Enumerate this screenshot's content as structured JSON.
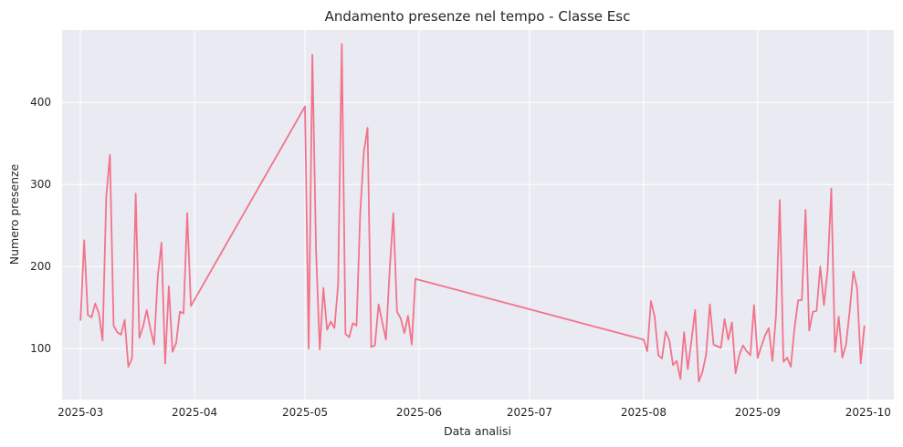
{
  "chart_data": {
    "type": "line",
    "title": "Andamento presenze nel tempo - Classe Esc",
    "xlabel": "Data analisi",
    "ylabel": "Numero presenze",
    "x_ticks": [
      "2025-03",
      "2025-04",
      "2025-05",
      "2025-06",
      "2025-07",
      "2025-08",
      "2025-09",
      "2025-10"
    ],
    "y_ticks": [
      100,
      200,
      300,
      400
    ],
    "xlim": [
      "2025-02-24",
      "2025-10-08"
    ],
    "ylim": [
      38,
      488
    ],
    "grid": true,
    "color": "#f2748a",
    "background": "#eaeaf2",
    "series": [
      {
        "x": [
          "2025-03-01",
          "2025-03-02",
          "2025-03-03",
          "2025-03-04",
          "2025-03-05",
          "2025-03-06",
          "2025-03-07",
          "2025-03-08",
          "2025-03-09",
          "2025-03-10",
          "2025-03-11",
          "2025-03-12",
          "2025-03-13",
          "2025-03-14",
          "2025-03-15",
          "2025-03-16",
          "2025-03-17",
          "2025-03-18",
          "2025-03-19",
          "2025-03-20",
          "2025-03-21",
          "2025-03-22",
          "2025-03-23",
          "2025-03-24",
          "2025-03-25",
          "2025-03-26",
          "2025-03-27",
          "2025-03-28",
          "2025-03-29",
          "2025-03-30",
          "2025-03-31",
          "2025-05-01",
          "2025-05-02",
          "2025-05-03",
          "2025-05-04",
          "2025-05-05",
          "2025-05-06",
          "2025-05-07",
          "2025-05-08",
          "2025-05-09",
          "2025-05-10",
          "2025-05-11",
          "2025-05-12",
          "2025-05-13",
          "2025-05-14",
          "2025-05-15",
          "2025-05-16",
          "2025-05-17",
          "2025-05-18",
          "2025-05-19",
          "2025-05-20",
          "2025-05-21",
          "2025-05-22",
          "2025-05-23",
          "2025-05-24",
          "2025-05-25",
          "2025-05-26",
          "2025-05-27",
          "2025-05-28",
          "2025-05-29",
          "2025-05-30",
          "2025-05-31",
          "2025-08-01",
          "2025-08-02",
          "2025-08-03",
          "2025-08-04",
          "2025-08-05",
          "2025-08-06",
          "2025-08-07",
          "2025-08-08",
          "2025-08-09",
          "2025-08-10",
          "2025-08-11",
          "2025-08-12",
          "2025-08-13",
          "2025-08-14",
          "2025-08-15",
          "2025-08-16",
          "2025-08-17",
          "2025-08-18",
          "2025-08-19",
          "2025-08-20",
          "2025-08-21",
          "2025-08-22",
          "2025-08-23",
          "2025-08-24",
          "2025-08-25",
          "2025-08-26",
          "2025-08-27",
          "2025-08-28",
          "2025-08-29",
          "2025-08-30",
          "2025-08-31",
          "2025-09-01",
          "2025-09-02",
          "2025-09-03",
          "2025-09-04",
          "2025-09-05",
          "2025-09-06",
          "2025-09-07",
          "2025-09-08",
          "2025-09-09",
          "2025-09-10",
          "2025-09-11",
          "2025-09-12",
          "2025-09-13",
          "2025-09-14",
          "2025-09-15",
          "2025-09-16",
          "2025-09-17",
          "2025-09-18",
          "2025-09-19",
          "2025-09-20",
          "2025-09-21",
          "2025-09-22",
          "2025-09-23",
          "2025-09-24",
          "2025-09-25",
          "2025-09-26",
          "2025-09-27",
          "2025-09-28",
          "2025-09-29",
          "2025-09-30"
        ],
        "values": [
          134,
          232,
          141,
          138,
          155,
          143,
          110,
          285,
          336,
          128,
          120,
          117,
          135,
          78,
          88,
          289,
          113,
          127,
          147,
          124,
          105,
          188,
          229,
          82,
          176,
          96,
          107,
          145,
          143,
          265,
          152,
          395,
          100,
          458,
          220,
          99,
          174,
          123,
          133,
          125,
          178,
          471,
          118,
          114,
          131,
          128,
          265,
          340,
          369,
          102,
          104,
          154,
          132,
          111,
          195,
          265,
          145,
          137,
          119,
          140,
          105,
          185,
          111,
          97,
          158,
          139,
          92,
          88,
          121,
          110,
          80,
          85,
          63,
          120,
          75,
          110,
          147,
          60,
          72,
          93,
          154,
          105,
          103,
          101,
          136,
          111,
          132,
          70,
          92,
          104,
          97,
          92,
          153,
          89,
          103,
          116,
          125,
          85,
          142,
          281,
          84,
          89,
          78,
          125,
          159,
          159,
          269,
          122,
          145,
          146,
          200,
          153,
          196,
          295,
          96,
          139,
          89,
          105,
          146,
          194,
          174,
          82,
          128
        ]
      }
    ]
  }
}
